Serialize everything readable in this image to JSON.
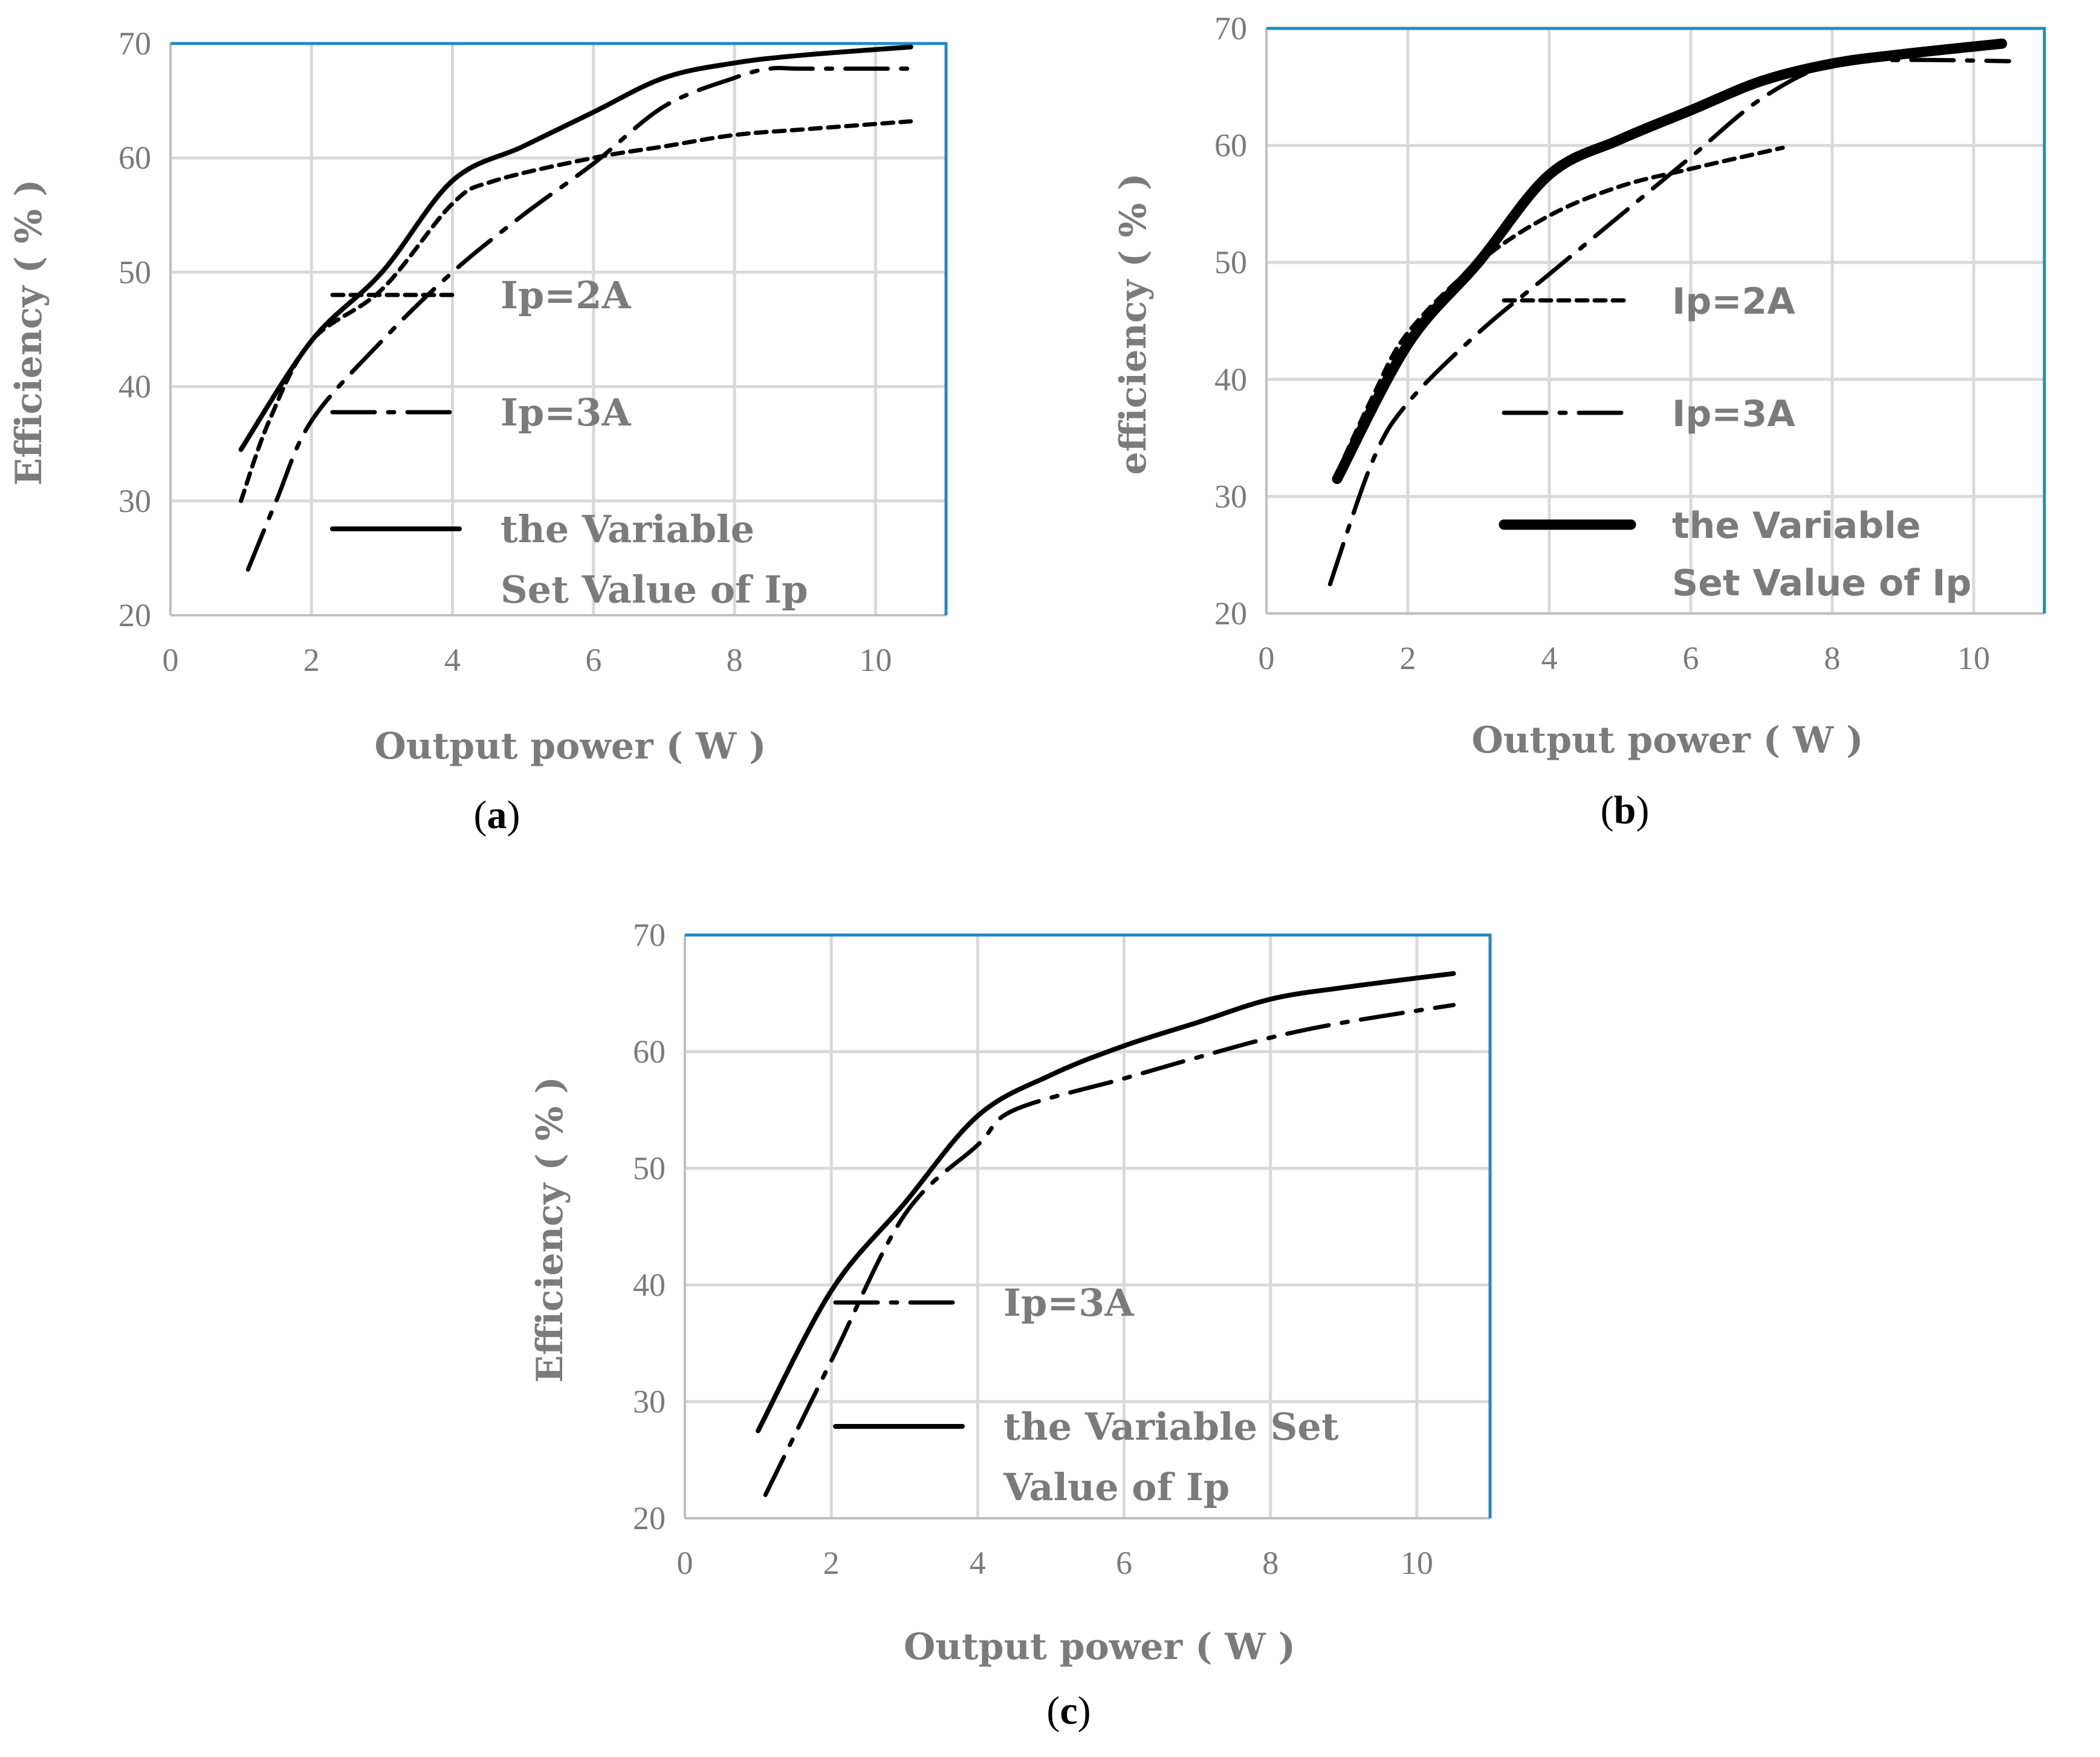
{
  "colors": {
    "frame": "#1e8bc3",
    "grid": "#d9d9d9",
    "text": "#7b7b7b",
    "line": "#000000"
  },
  "chart_data": [
    {
      "id": "a",
      "type": "line",
      "caption": {
        "open": "(",
        "letter": "a",
        "close": ")"
      },
      "xlabel": "Output power ( W )",
      "ylabel": "Efficiency ( % )",
      "xlim": [
        0,
        11
      ],
      "ylim": [
        20,
        70
      ],
      "xticks": [
        0,
        2,
        4,
        6,
        8,
        10
      ],
      "yticks": [
        20,
        30,
        40,
        50,
        60,
        70
      ],
      "grid": true,
      "legend_position": "right",
      "series": [
        {
          "name": "Ip=2A",
          "legend_lines": [
            "Ip=2A"
          ],
          "style": "dotted",
          "x": [
            1,
            1.4,
            2,
            3,
            4,
            4.6,
            6,
            7,
            8,
            9,
            10.5
          ],
          "y": [
            30,
            37,
            44,
            48.5,
            56,
            58,
            60,
            61,
            62,
            62.5,
            63.2
          ]
        },
        {
          "name": "Ip=3A",
          "legend_lines": [
            "Ip=3A"
          ],
          "style": "dashdot",
          "x": [
            1.1,
            1.5,
            2,
            3,
            4,
            5,
            6,
            7,
            8,
            8.5,
            9,
            10.5
          ],
          "y": [
            24,
            30,
            37,
            44,
            50,
            55,
            59.5,
            64.5,
            67,
            67.8,
            67.8,
            67.8
          ]
        },
        {
          "name": "the Variable Set Value of Ip",
          "legend_lines": [
            "the Variable",
            "Set Value of Ip"
          ],
          "style": "solid",
          "x": [
            1,
            2,
            3,
            4,
            5,
            6,
            7,
            8,
            9,
            10.5
          ],
          "y": [
            34.5,
            44,
            50,
            58,
            61,
            64,
            67,
            68.3,
            69,
            69.7
          ]
        }
      ]
    },
    {
      "id": "b",
      "type": "line",
      "caption": {
        "open": "(",
        "letter": "b",
        "close": ")"
      },
      "xlabel": "Output power ( W )",
      "ylabel": "efficiency ( % )",
      "xlim": [
        0,
        11
      ],
      "ylim": [
        20,
        70
      ],
      "xticks": [
        0,
        2,
        4,
        6,
        8,
        10
      ],
      "yticks": [
        20,
        30,
        40,
        50,
        60,
        70
      ],
      "grid": true,
      "legend_position": "right",
      "series": [
        {
          "name": "Ip=2A",
          "legend_lines": [
            "Ip=2A"
          ],
          "style": "dotted",
          "x": [
            1,
            1.5,
            2,
            3,
            4,
            5,
            6,
            7.3
          ],
          "y": [
            32,
            38.5,
            44,
            50,
            54,
            56.5,
            58,
            59.8
          ]
        },
        {
          "name": "Ip=3A",
          "legend_lines": [
            "Ip=3A"
          ],
          "style": "dashdot",
          "x": [
            0.9,
            1.5,
            2,
            3,
            4,
            5,
            6,
            7,
            8,
            9,
            10.5
          ],
          "y": [
            22.5,
            33,
            38,
            44,
            49,
            54,
            59,
            64,
            67,
            67.3,
            67.2
          ]
        },
        {
          "name": "the Variable Set Value of Ip",
          "legend_lines": [
            "the Variable",
            "Set Value of Ip"
          ],
          "style": "bold",
          "x": [
            1,
            2,
            3,
            4,
            5,
            6,
            7,
            8,
            9,
            10.4
          ],
          "y": [
            31.5,
            43,
            50,
            57.5,
            60.5,
            63,
            65.5,
            67,
            67.8,
            68.7
          ]
        }
      ]
    },
    {
      "id": "c",
      "type": "line",
      "caption": {
        "open": "(",
        "letter": "c",
        "close": ")"
      },
      "xlabel": "Output power ( W )",
      "ylabel": "Efficiency ( % )",
      "xlim": [
        0,
        11
      ],
      "ylim": [
        20,
        70
      ],
      "xticks": [
        0,
        2,
        4,
        6,
        8,
        10
      ],
      "yticks": [
        20,
        30,
        40,
        50,
        60,
        70
      ],
      "grid": true,
      "legend_position": "right",
      "series": [
        {
          "name": "Ip=3A",
          "legend_lines": [
            "Ip=3A"
          ],
          "style": "dashdot",
          "x": [
            1.1,
            2,
            3,
            4,
            4.5,
            6,
            7,
            8,
            9,
            10.5
          ],
          "y": [
            22,
            33.5,
            46,
            52,
            55,
            57.7,
            59.5,
            61.2,
            62.5,
            64
          ]
        },
        {
          "name": "the Variable Set Value of Ip",
          "legend_lines": [
            "the Variable Set",
            "Value of Ip"
          ],
          "style": "solid",
          "x": [
            1,
            2,
            3,
            4,
            5,
            6,
            7,
            8,
            9,
            10.5
          ],
          "y": [
            27.5,
            39.5,
            47,
            54.5,
            58,
            60.5,
            62.5,
            64.5,
            65.5,
            66.7
          ]
        }
      ]
    }
  ]
}
